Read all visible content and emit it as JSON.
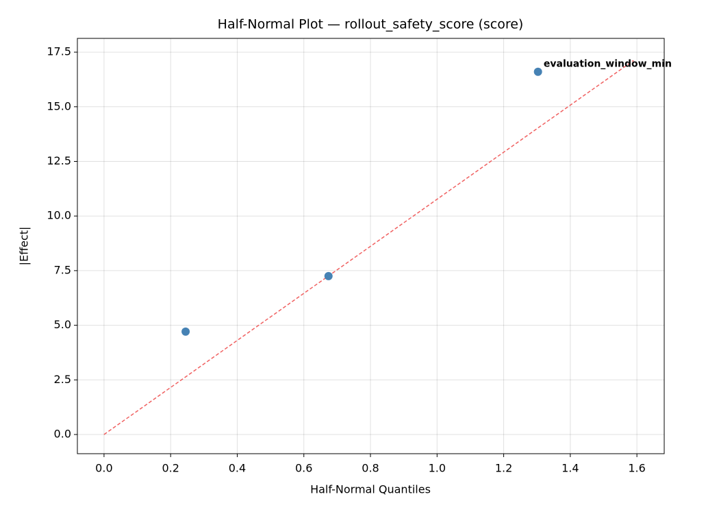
{
  "chart_data": {
    "type": "scatter",
    "title": "Half-Normal Plot — rollout_safety_score (score)",
    "xlabel": "Half-Normal Quantiles",
    "ylabel": "|Effect|",
    "series": [
      {
        "type": "scatter",
        "color": "#4682b4",
        "x": [
          0.245,
          0.674,
          1.303
        ],
        "values": [
          4.71,
          7.25,
          16.6
        ]
      },
      {
        "type": "line",
        "color": "#f06060",
        "dashed": true,
        "x": [
          0,
          1.59
        ],
        "values": [
          0,
          17.12
        ]
      }
    ],
    "annotations": [
      {
        "text": "evaluation_window_min",
        "x": 1.32,
        "y": 16.95,
        "color": "#ff0000"
      }
    ],
    "xlim": [
      -0.08,
      1.682
    ],
    "ylim": [
      -0.878,
      18.13
    ],
    "xticks": [
      {
        "value": 0,
        "label": "0.0"
      },
      0.2,
      0.4,
      0.6,
      0.8,
      {
        "value": 1,
        "label": "1.0"
      },
      1.2,
      1.4,
      1.6
    ],
    "yticks": [
      {
        "value": 0,
        "label": "0.0"
      },
      2.5,
      {
        "value": 5,
        "label": "5.0"
      },
      7.5,
      {
        "value": 10,
        "label": "10.0"
      },
      12.5,
      {
        "value": 15,
        "label": "15.0"
      },
      17.5
    ],
    "grid": true
  }
}
